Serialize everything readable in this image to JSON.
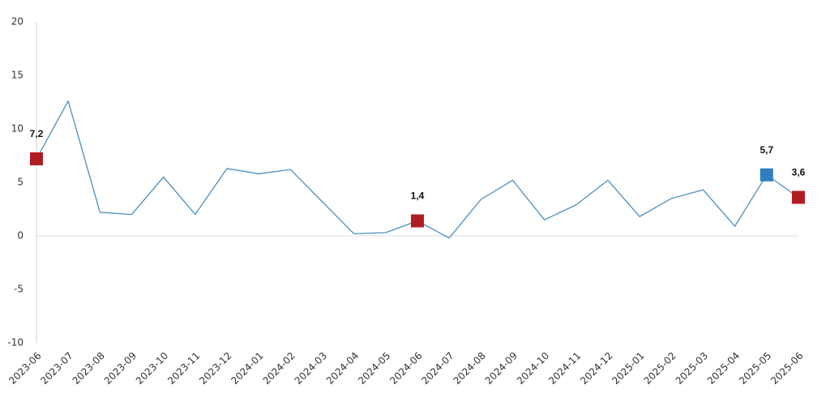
{
  "chart_data": {
    "type": "line",
    "categories": [
      "2023-06",
      "2023-07",
      "2023-08",
      "2023-09",
      "2023-10",
      "2023-11",
      "2023-12",
      "2024-01",
      "2024-02",
      "2024-03",
      "2024-04",
      "2024-05",
      "2024-06",
      "2024-07",
      "2024-08",
      "2024-09",
      "2024-10",
      "2024-11",
      "2024-12",
      "2025-01",
      "2025-02",
      "2025-03",
      "2025-04",
      "2025-05",
      "2025-06"
    ],
    "values": [
      7.2,
      12.6,
      2.2,
      2.0,
      5.5,
      2.0,
      6.3,
      5.8,
      6.2,
      3.2,
      0.2,
      0.3,
      1.4,
      -0.2,
      3.4,
      5.2,
      1.5,
      2.9,
      5.2,
      1.8,
      3.5,
      4.3,
      0.9,
      5.7,
      3.6
    ],
    "value_labels": [
      "7,2",
      null,
      null,
      null,
      null,
      null,
      null,
      null,
      null,
      null,
      null,
      null,
      "1,4",
      null,
      null,
      null,
      null,
      null,
      null,
      null,
      null,
      null,
      null,
      "5,7",
      "3,6"
    ],
    "marker_colors": [
      "#b01c24",
      null,
      null,
      null,
      null,
      null,
      null,
      null,
      null,
      null,
      null,
      null,
      "#b01c24",
      null,
      null,
      null,
      null,
      null,
      null,
      null,
      null,
      null,
      null,
      "#2f7ec0",
      "#b01c24"
    ],
    "color": "#4a90c2",
    "ylim": [
      -10,
      20
    ],
    "yticks": [
      -10,
      -5,
      0,
      5,
      10,
      15,
      20
    ],
    "zero_line": true
  }
}
